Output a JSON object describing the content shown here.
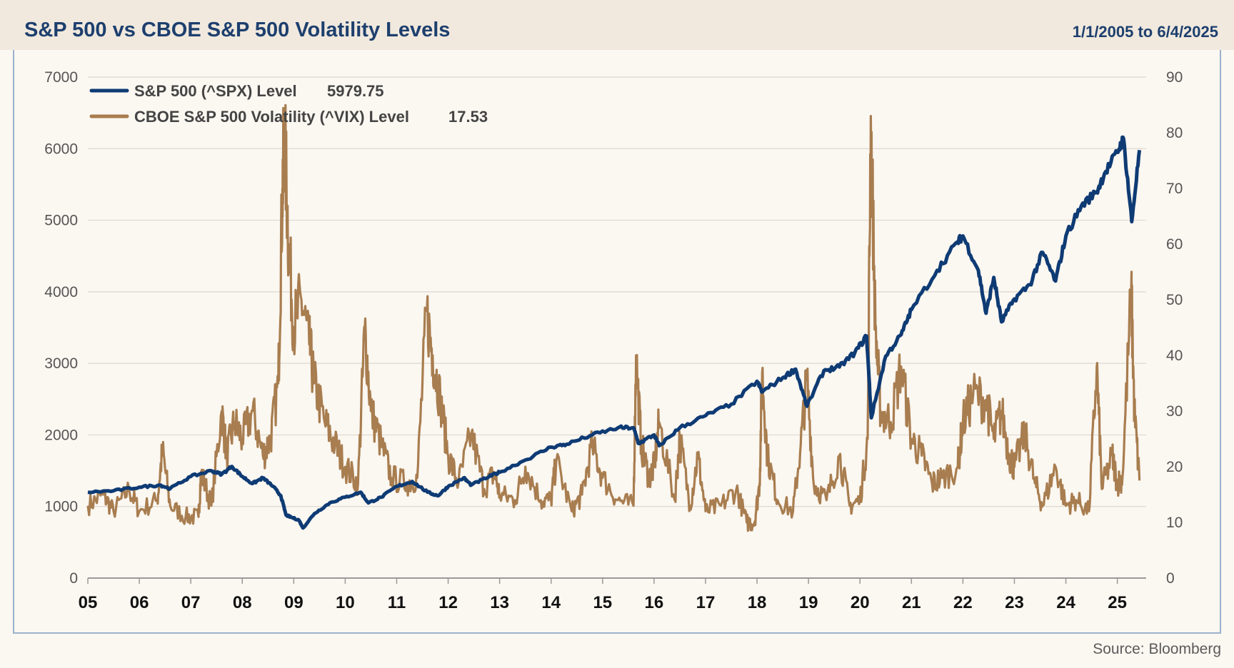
{
  "header": {
    "title": "S&P 500 vs CBOE S&P 500 Volatility Levels",
    "date_range": "1/1/2005 to 6/4/2025"
  },
  "footer": {
    "source": "Source: Bloomberg"
  },
  "colors": {
    "spx": "#0e3b74",
    "vix": "#a87d4f",
    "grid": "#ddd8d0",
    "background": "#fbf7f1"
  },
  "chart_data": {
    "type": "line",
    "x_ticks": [
      "05",
      "06",
      "07",
      "08",
      "09",
      "10",
      "11",
      "12",
      "13",
      "14",
      "15",
      "16",
      "17",
      "18",
      "19",
      "20",
      "21",
      "22",
      "23",
      "24",
      "25"
    ],
    "x_range": [
      2005.0,
      2025.43
    ],
    "y_left": {
      "ticks": [
        0,
        1000,
        2000,
        3000,
        4000,
        5000,
        6000,
        7000
      ],
      "ylim": [
        0,
        7000
      ]
    },
    "y_right": {
      "ticks": [
        0,
        10,
        20,
        30,
        40,
        50,
        60,
        70,
        80,
        90
      ],
      "ylim": [
        0,
        90
      ]
    },
    "grid": true,
    "legend_position": "top-left",
    "series": [
      {
        "name": "S&P 500 (^SPX) Level",
        "last_value": "5979.75",
        "axis": "left",
        "points": [
          [
            2005.0,
            1200
          ],
          [
            2005.5,
            1220
          ],
          [
            2006.0,
            1270
          ],
          [
            2006.4,
            1300
          ],
          [
            2006.6,
            1250
          ],
          [
            2007.0,
            1420
          ],
          [
            2007.4,
            1500
          ],
          [
            2007.6,
            1450
          ],
          [
            2007.8,
            1560
          ],
          [
            2008.0,
            1420
          ],
          [
            2008.2,
            1320
          ],
          [
            2008.4,
            1400
          ],
          [
            2008.6,
            1280
          ],
          [
            2008.75,
            1150
          ],
          [
            2008.85,
            880
          ],
          [
            2008.95,
            850
          ],
          [
            2009.1,
            810
          ],
          [
            2009.18,
            700
          ],
          [
            2009.4,
            900
          ],
          [
            2009.7,
            1050
          ],
          [
            2010.0,
            1130
          ],
          [
            2010.3,
            1200
          ],
          [
            2010.45,
            1050
          ],
          [
            2010.7,
            1130
          ],
          [
            2011.0,
            1280
          ],
          [
            2011.3,
            1350
          ],
          [
            2011.6,
            1200
          ],
          [
            2011.8,
            1150
          ],
          [
            2012.0,
            1280
          ],
          [
            2012.3,
            1400
          ],
          [
            2012.45,
            1300
          ],
          [
            2012.8,
            1420
          ],
          [
            2013.0,
            1480
          ],
          [
            2013.5,
            1650
          ],
          [
            2014.0,
            1830
          ],
          [
            2014.3,
            1870
          ],
          [
            2014.8,
            2000
          ],
          [
            2015.3,
            2100
          ],
          [
            2015.6,
            2100
          ],
          [
            2015.7,
            1880
          ],
          [
            2016.0,
            2000
          ],
          [
            2016.1,
            1850
          ],
          [
            2016.5,
            2100
          ],
          [
            2017.0,
            2270
          ],
          [
            2017.5,
            2430
          ],
          [
            2018.0,
            2750
          ],
          [
            2018.1,
            2600
          ],
          [
            2018.5,
            2800
          ],
          [
            2018.75,
            2920
          ],
          [
            2018.97,
            2400
          ],
          [
            2019.3,
            2900
          ],
          [
            2019.6,
            2950
          ],
          [
            2019.9,
            3150
          ],
          [
            2020.13,
            3380
          ],
          [
            2020.22,
            2240
          ],
          [
            2020.5,
            3100
          ],
          [
            2020.8,
            3400
          ],
          [
            2021.0,
            3750
          ],
          [
            2021.5,
            4300
          ],
          [
            2021.9,
            4700
          ],
          [
            2022.0,
            4780
          ],
          [
            2022.3,
            4300
          ],
          [
            2022.45,
            3700
          ],
          [
            2022.6,
            4200
          ],
          [
            2022.75,
            3580
          ],
          [
            2023.0,
            3900
          ],
          [
            2023.3,
            4100
          ],
          [
            2023.55,
            4550
          ],
          [
            2023.8,
            4150
          ],
          [
            2024.0,
            4780
          ],
          [
            2024.3,
            5200
          ],
          [
            2024.6,
            5400
          ],
          [
            2024.75,
            5650
          ],
          [
            2025.0,
            5950
          ],
          [
            2025.12,
            6140
          ],
          [
            2025.28,
            4980
          ],
          [
            2025.43,
            5980
          ]
        ]
      },
      {
        "name": "CBOE S&P 500 Volatility (^VIX) Level",
        "last_value": "17.53",
        "axis": "right",
        "points": [
          [
            2005.0,
            13
          ],
          [
            2005.3,
            15
          ],
          [
            2005.5,
            12
          ],
          [
            2005.8,
            16
          ],
          [
            2006.0,
            12
          ],
          [
            2006.35,
            14
          ],
          [
            2006.45,
            23
          ],
          [
            2006.6,
            13
          ],
          [
            2006.9,
            11
          ],
          [
            2007.15,
            11
          ],
          [
            2007.2,
            19
          ],
          [
            2007.4,
            13
          ],
          [
            2007.6,
            30
          ],
          [
            2007.7,
            22
          ],
          [
            2007.85,
            28
          ],
          [
            2008.0,
            25
          ],
          [
            2008.2,
            30
          ],
          [
            2008.4,
            22
          ],
          [
            2008.55,
            25
          ],
          [
            2008.7,
            35
          ],
          [
            2008.78,
            70
          ],
          [
            2008.82,
            80
          ],
          [
            2008.9,
            60
          ],
          [
            2009.0,
            45
          ],
          [
            2009.15,
            50
          ],
          [
            2009.3,
            42
          ],
          [
            2009.4,
            35
          ],
          [
            2009.6,
            28
          ],
          [
            2009.8,
            24
          ],
          [
            2010.0,
            20
          ],
          [
            2010.25,
            17
          ],
          [
            2010.38,
            45
          ],
          [
            2010.5,
            30
          ],
          [
            2010.7,
            24
          ],
          [
            2010.9,
            18
          ],
          [
            2011.2,
            17
          ],
          [
            2011.4,
            18
          ],
          [
            2011.58,
            48
          ],
          [
            2011.7,
            40
          ],
          [
            2011.85,
            32
          ],
          [
            2012.0,
            22
          ],
          [
            2012.2,
            17
          ],
          [
            2012.45,
            26
          ],
          [
            2012.7,
            16
          ],
          [
            2012.9,
            19
          ],
          [
            2013.0,
            15
          ],
          [
            2013.3,
            14
          ],
          [
            2013.5,
            20
          ],
          [
            2013.8,
            14
          ],
          [
            2014.0,
            14
          ],
          [
            2014.1,
            21
          ],
          [
            2014.4,
            12
          ],
          [
            2014.6,
            15
          ],
          [
            2014.8,
            24
          ],
          [
            2015.0,
            18
          ],
          [
            2015.3,
            14
          ],
          [
            2015.6,
            13
          ],
          [
            2015.65,
            40
          ],
          [
            2015.75,
            24
          ],
          [
            2015.9,
            18
          ],
          [
            2016.0,
            20
          ],
          [
            2016.1,
            28
          ],
          [
            2016.4,
            14
          ],
          [
            2016.5,
            25
          ],
          [
            2016.7,
            13
          ],
          [
            2016.85,
            22
          ],
          [
            2017.0,
            12
          ],
          [
            2017.3,
            13
          ],
          [
            2017.6,
            16
          ],
          [
            2017.8,
            10
          ],
          [
            2017.95,
            10
          ],
          [
            2018.05,
            17
          ],
          [
            2018.1,
            37
          ],
          [
            2018.2,
            22
          ],
          [
            2018.4,
            14
          ],
          [
            2018.7,
            12
          ],
          [
            2018.85,
            24
          ],
          [
            2018.97,
            36
          ],
          [
            2019.1,
            17
          ],
          [
            2019.35,
            14
          ],
          [
            2019.6,
            22
          ],
          [
            2019.8,
            13
          ],
          [
            2020.0,
            14
          ],
          [
            2020.15,
            25
          ],
          [
            2020.21,
            83
          ],
          [
            2020.3,
            45
          ],
          [
            2020.4,
            30
          ],
          [
            2020.6,
            28
          ],
          [
            2020.8,
            38
          ],
          [
            2021.0,
            25
          ],
          [
            2021.2,
            22
          ],
          [
            2021.4,
            17
          ],
          [
            2021.6,
            18
          ],
          [
            2021.9,
            20
          ],
          [
            2022.0,
            28
          ],
          [
            2022.2,
            33
          ],
          [
            2022.45,
            32
          ],
          [
            2022.6,
            25
          ],
          [
            2022.75,
            30
          ],
          [
            2022.9,
            22
          ],
          [
            2023.0,
            20
          ],
          [
            2023.2,
            26
          ],
          [
            2023.4,
            17
          ],
          [
            2023.55,
            13
          ],
          [
            2023.8,
            20
          ],
          [
            2024.0,
            13
          ],
          [
            2024.2,
            14
          ],
          [
            2024.45,
            12
          ],
          [
            2024.6,
            38
          ],
          [
            2024.7,
            16
          ],
          [
            2024.9,
            22
          ],
          [
            2025.0,
            17
          ],
          [
            2025.1,
            18
          ],
          [
            2025.27,
            52
          ],
          [
            2025.33,
            30
          ],
          [
            2025.43,
            17.53
          ]
        ]
      }
    ]
  }
}
